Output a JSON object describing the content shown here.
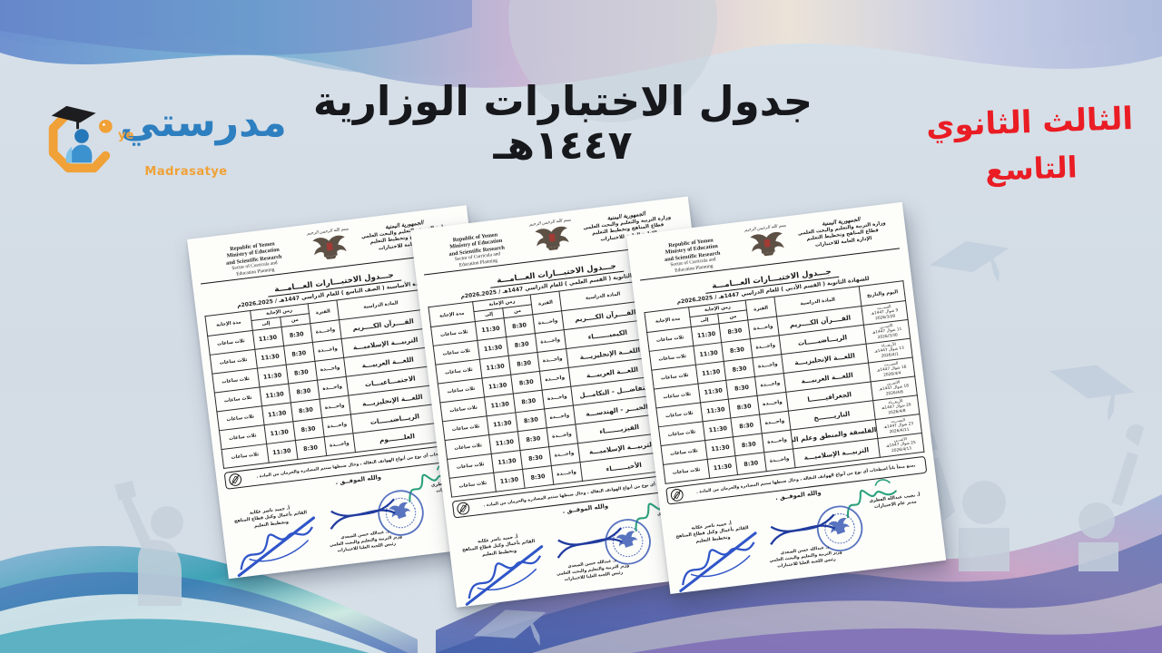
{
  "logo": {
    "name_ar": "مدرستي",
    "ye": "ye",
    "name_en": "Madrasatye",
    "accent_color": "#f0a137",
    "blue_color": "#2e7fc0"
  },
  "title": {
    "line1": "جدول الاختبارات الوزارية",
    "line2": "١٤٤٧هـ"
  },
  "side_label": {
    "line1": "الثالث الثانوي",
    "line2": "التاسع",
    "color": "#ea1c24"
  },
  "shared": {
    "basmala": "بسم الله الرحمن الرحيم",
    "english_header": [
      "Republic of Yemen",
      "Ministry of  Education",
      "and Scientific Research",
      "Sector of Curricula and",
      "Education Planning"
    ],
    "arabic_header": [
      "الجمهورية اليمنية",
      "وزارة التربية والتعليم والبحث العلمي",
      "قطاع المناهج وتخطيط التعليم",
      "الإدارة العامة للاختبارات"
    ],
    "doc_title": "جـــدول الاختبـــارات العـــامـــة",
    "table_headers": {
      "day": "اليوم والتاريخ",
      "subject": "المادة الدراسية",
      "period": "الفترة",
      "answer_time": "زمن الإجابة",
      "from": "من",
      "to": "إلى",
      "duration": "مدة الإجابة"
    },
    "period_value": "واحـــدة",
    "from_value": "8:30",
    "to_value": "11:30",
    "duration_value": "ثلاث ساعات",
    "note": "يمنع منعاً باتاً اصطحاب أي نوع من أنواع الهواتف النقالة ، وحال ضبطها ستتم المصادرة والحرمان من المادة .",
    "tawfiq": "والله الموفــق .",
    "signatures": {
      "right_name": "أ. نجيب عبدالله العطري",
      "right_title": "مدير عام الاختبارات",
      "center_name": "د. عبدالله حسن الصعدي",
      "center_title1": "وزير التربية والتعليم والبحث العلمي",
      "center_title2": "رئيس اللجنة العليا للاختبارات",
      "left_name": "أ. حميد ناصر عكابة",
      "left_title1": "القائم بأعمال وكيل قطاع المناهج",
      "left_title2": "وتخطيط التعليم"
    }
  },
  "documents": [
    {
      "subtitle": "للشهادة الأساسية ( الصف التاسع ) للعام الدراسي 1447هـ / 2025ـ2026م",
      "rows": [
        {
          "day": [
            "السبـــت",
            "9 شوال 1447هـ",
            "2026/3/28"
          ],
          "subject": "القــــرآن الكــــريم"
        },
        {
          "day": [
            "الاثنيـــن",
            "11 شوال 1447هـ",
            "2026/3/30"
          ],
          "subject": "التربيـــة الإسلاميـــة"
        },
        {
          "day": [
            "الأربعـــاء",
            "13 شوال 1447هـ",
            "2026/4/1"
          ],
          "subject": "اللغـــة العربيـــة"
        },
        {
          "day": [
            "السبـــت",
            "16 شوال 1447هـ",
            "2026/4/4"
          ],
          "subject": "الاجتمـــاعيـــات"
        },
        {
          "day": [
            "الاثنيـــن",
            "18 شوال 1447هـ",
            "2026/4/6"
          ],
          "subject": "اللغـــة الإنجليزيـــة"
        },
        {
          "day": [
            "الأربعـــاء",
            "20 شوال 1447هـ",
            "2026/4/8"
          ],
          "subject": "الريـــاضيـــــات"
        },
        {
          "day": [
            "السبـــت",
            "23 شوال 1447هـ",
            "2026/4/11"
          ],
          "subject": "العلـــــــوم"
        }
      ]
    },
    {
      "subtitle": "للشهادة الثانوية ( القسم العلمي ) للعام الدراسي 1447هـ / 2025ـ2026م",
      "rows": [
        {
          "day": [
            "السبـــت",
            "9 شوال 1447هـ",
            "2026/3/28"
          ],
          "subject": "القــــرآن الكــــريم"
        },
        {
          "day": [
            "الاثنيـــن",
            "11 شوال 1447هـ",
            "2026/3/30"
          ],
          "subject": "الكيميـــــــاء"
        },
        {
          "day": [
            "الأربعـــاء",
            "13 شوال 1447هـ",
            "2026/4/1"
          ],
          "subject": "اللغـــة الإنجليزيـــة"
        },
        {
          "day": [
            "السبـــت",
            "16 شوال 1447هـ",
            "2026/4/4"
          ],
          "subject": "اللغـــة العربيـــة"
        },
        {
          "day": [
            "الاثنيـــن",
            "18 شوال 1447هـ",
            "2026/4/6"
          ],
          "subject": "التفاضـــل - التكامـــل"
        },
        {
          "day": [
            "الأربعـــاء",
            "20 شوال 1447هـ",
            "2026/4/8"
          ],
          "subject": "الجبـــر - الهندســـة"
        },
        {
          "day": [
            "السبـــت",
            "23 شوال 1447هـ",
            "2026/4/11"
          ],
          "subject": "الفيزيـــــــاء"
        },
        {
          "day": [
            "الاثنيـــن",
            "25 شوال 1447هـ",
            "2026/4/13"
          ],
          "subject": "التربيـــة الإسلاميـــة"
        },
        {
          "day": [
            "الأربعـــاء",
            "27 شوال 1447هـ",
            "2026/4/15"
          ],
          "subject": "الأحيـــــــاء"
        }
      ]
    },
    {
      "subtitle": "للشهادة الثانوية ( القسم الأدبي ) للعام الدراسي 1447هـ / 2025ـ2026م",
      "rows": [
        {
          "day": [
            "السبـــت",
            "9 شوال 1447هـ",
            "2026/3/28"
          ],
          "subject": "القــــرآن الكــــريم"
        },
        {
          "day": [
            "الاثنيـــن",
            "11 شوال 1447هـ",
            "2026/3/30"
          ],
          "subject": "الريـــاضيـــــات"
        },
        {
          "day": [
            "الأربعـــاء",
            "13 شوال 1447هـ",
            "2026/4/1"
          ],
          "subject": "اللغـــة الإنجليزيـــة"
        },
        {
          "day": [
            "السبـــت",
            "16 شوال 1447هـ",
            "2026/4/4"
          ],
          "subject": "اللغـــة العربيـــة"
        },
        {
          "day": [
            "الاثنيـــن",
            "18 شوال 1447هـ",
            "2026/4/6"
          ],
          "subject": "الجغرافيـــــــا"
        },
        {
          "day": [
            "الأربعـــاء",
            "20 شوال 1447هـ",
            "2026/4/8"
          ],
          "subject": "التاريـــــــخ"
        },
        {
          "day": [
            "السبـــت",
            "23 شوال 1447هـ",
            "2026/4/11"
          ],
          "subject": "الفلسفة والمنطق وعلم النفس"
        },
        {
          "day": [
            "الاثنيـــن",
            "25 شوال 1447هـ",
            "2026/4/13"
          ],
          "subject": "التربيـــة الإسلاميـــة"
        }
      ]
    }
  ]
}
